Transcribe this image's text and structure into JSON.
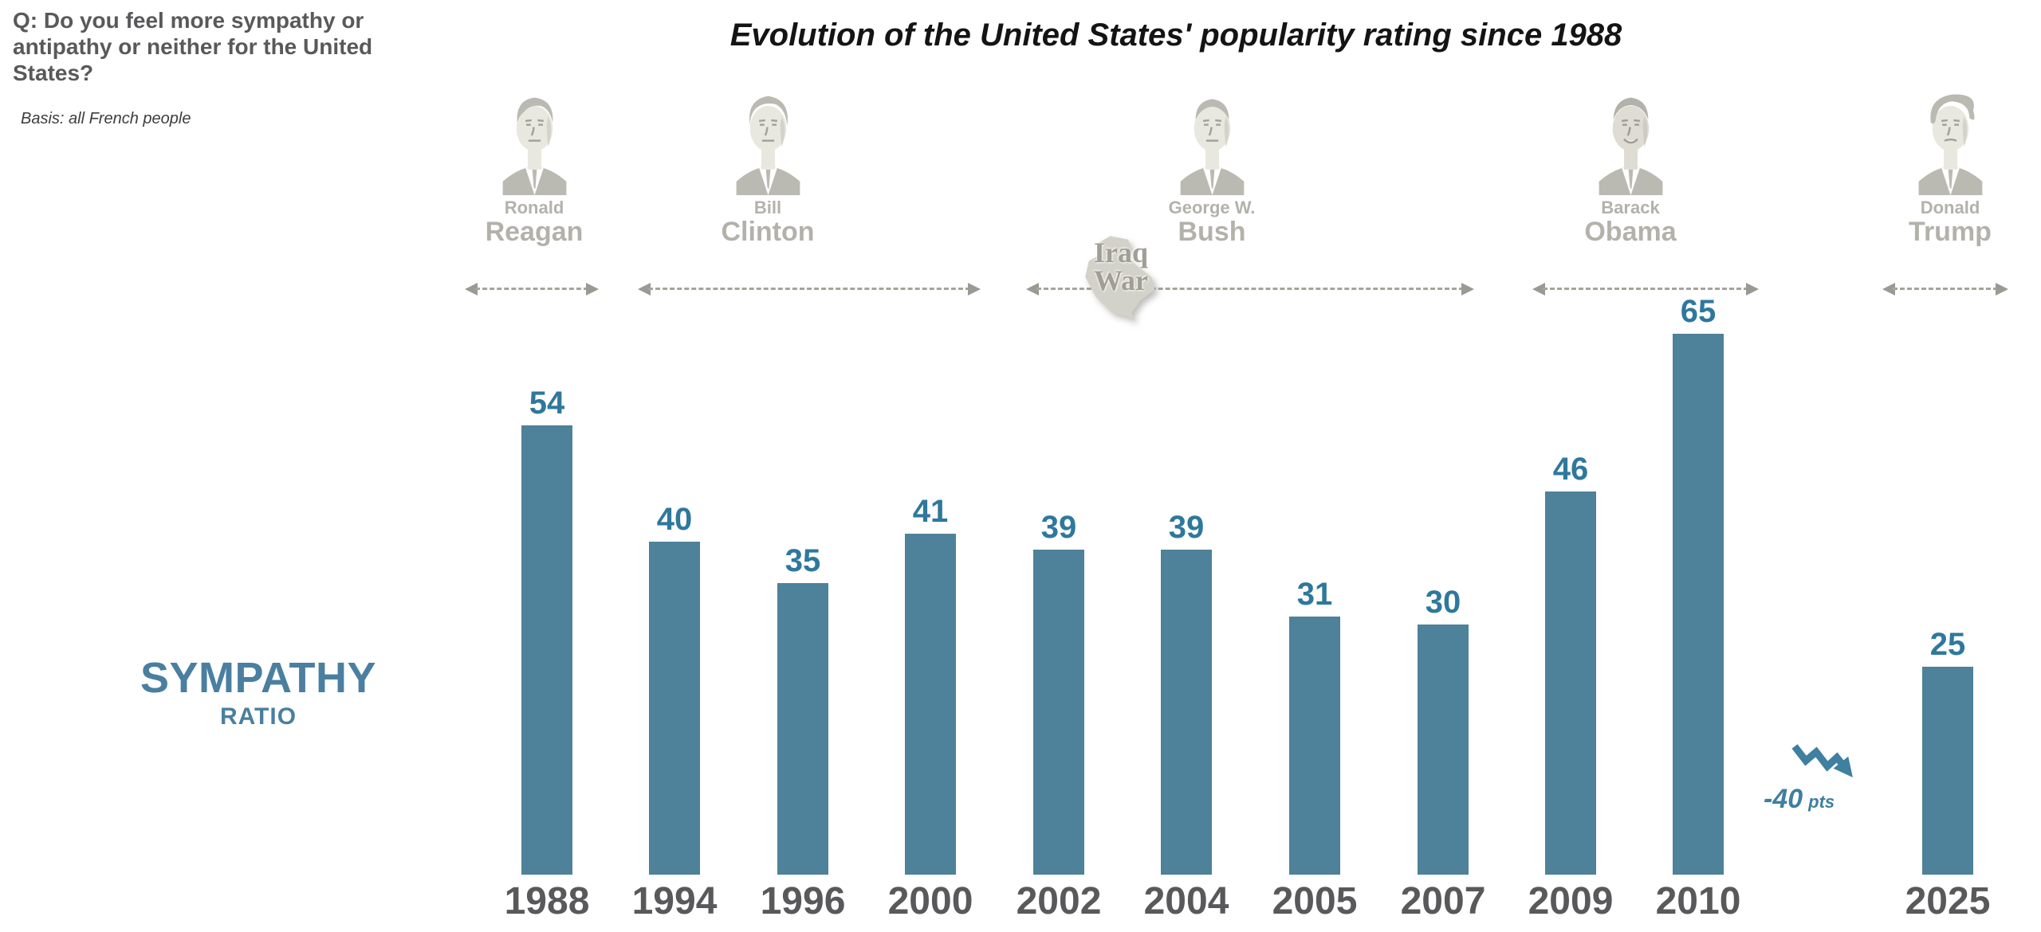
{
  "header": {
    "question": "Q: Do you feel more sympathy or antipathy or neither for the United States?",
    "basis": "Basis: all French people",
    "title": "Evolution of the United States' popularity rating since 1988"
  },
  "y_axis_label": {
    "line1": "SYMPATHY",
    "line2": "RATIO"
  },
  "presidents": [
    {
      "first": "Ronald",
      "last": "Reagan"
    },
    {
      "first": "Bill",
      "last": "Clinton"
    },
    {
      "first": "George W.",
      "last": "Bush"
    },
    {
      "first": "Barack",
      "last": "Obama"
    },
    {
      "first": "Donald",
      "last": "Trump"
    }
  ],
  "iraq_war_label": {
    "line1": "Iraq",
    "line2": "War"
  },
  "annotation": {
    "value": "-40",
    "unit": "pts"
  },
  "chart_data": {
    "type": "bar",
    "title": "Evolution of the United States' popularity rating since 1988",
    "categories": [
      "1988",
      "1994",
      "1996",
      "2000",
      "2002",
      "2004",
      "2005",
      "2007",
      "2009",
      "2010",
      "2025"
    ],
    "values": [
      54,
      40,
      35,
      41,
      39,
      39,
      31,
      30,
      46,
      65,
      25
    ],
    "series_name": "Sympathy ratio (% of French people)",
    "xlabel": "",
    "ylabel": "SYMPATHY RATIO",
    "ylim": [
      0,
      70
    ],
    "grid": false,
    "legend_position": "none",
    "data_labels": true,
    "annotations": [
      {
        "text": "-40 pts",
        "meaning": "drop between 2010 and 2025",
        "icon": "zigzag-down-arrow"
      },
      {
        "text": "Iraq War",
        "position": "between 2000 and 2002 terms row"
      }
    ],
    "president_terms": [
      {
        "president": "Ronald Reagan",
        "covers": [
          "1988"
        ]
      },
      {
        "president": "Bill Clinton",
        "covers": [
          "1994",
          "1996",
          "2000"
        ]
      },
      {
        "president": "George W. Bush",
        "covers": [
          "2002",
          "2004",
          "2005",
          "2007"
        ]
      },
      {
        "president": "Barack Obama",
        "covers": [
          "2009",
          "2010"
        ]
      },
      {
        "president": "Donald Trump",
        "covers": [
          "2025"
        ]
      }
    ]
  },
  "colors": {
    "bar": "#4e819a",
    "value_label": "#2f789c",
    "year_label": "#59595b",
    "accent_teal": "#4a7fa0",
    "president_gray": "#b3b2aa",
    "arrow_gray": "#a4a49c"
  }
}
